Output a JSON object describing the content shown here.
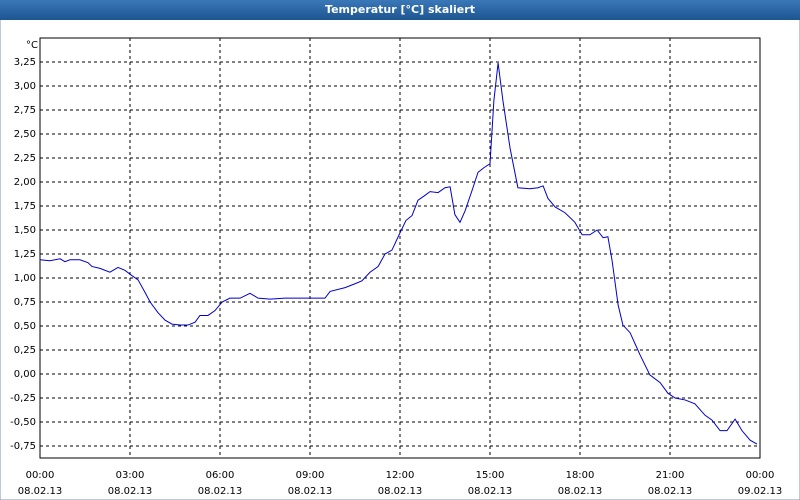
{
  "chart_data": {
    "type": "line",
    "title": "Temperatur [°C] skaliert",
    "y_unit": "°C",
    "xlim": [
      0,
      24
    ],
    "ylim": [
      -0.875,
      3.5
    ],
    "grid": true,
    "xticks": [
      {
        "value": 0,
        "label": "00:00",
        "date": "08.02.13"
      },
      {
        "value": 3,
        "label": "03:00",
        "date": "08.02.13"
      },
      {
        "value": 6,
        "label": "06:00",
        "date": "08.02.13"
      },
      {
        "value": 9,
        "label": "09:00",
        "date": "08.02.13"
      },
      {
        "value": 12,
        "label": "12:00",
        "date": "08.02.13"
      },
      {
        "value": 15,
        "label": "15:00",
        "date": "08.02.13"
      },
      {
        "value": 18,
        "label": "18:00",
        "date": "08.02.13"
      },
      {
        "value": 21,
        "label": "21:00",
        "date": "08.02.13"
      },
      {
        "value": 24,
        "label": "00:00",
        "date": "09.02.13"
      }
    ],
    "yticks": [
      {
        "value": 3.25,
        "label": "3,25"
      },
      {
        "value": 3,
        "label": "3,00"
      },
      {
        "value": 2.75,
        "label": "2,75"
      },
      {
        "value": 2.5,
        "label": "2,50"
      },
      {
        "value": 2.25,
        "label": "2,25"
      },
      {
        "value": 2,
        "label": "2,00"
      },
      {
        "value": 1.75,
        "label": "1,75"
      },
      {
        "value": 1.5,
        "label": "1,50"
      },
      {
        "value": 1.25,
        "label": "1,25"
      },
      {
        "value": 1,
        "label": "1,00"
      },
      {
        "value": 0.75,
        "label": "0,75"
      },
      {
        "value": 0.5,
        "label": "0,50"
      },
      {
        "value": 0.25,
        "label": "0,25"
      },
      {
        "value": 0,
        "label": "0,00"
      },
      {
        "value": -0.25,
        "label": "-0,25"
      },
      {
        "value": -0.5,
        "label": "-0,50"
      },
      {
        "value": -0.75,
        "label": "-0,75"
      }
    ],
    "x": [
      0,
      0.33,
      0.67,
      0.83,
      1.0,
      1.33,
      1.6,
      1.73,
      2.0,
      2.33,
      2.6,
      2.83,
      3.0,
      3.27,
      3.5,
      3.67,
      3.93,
      4.17,
      4.4,
      4.67,
      4.93,
      5.17,
      5.33,
      5.6,
      5.83,
      6.07,
      6.33,
      6.67,
      7.0,
      7.27,
      7.67,
      8.17,
      8.67,
      9.17,
      9.5,
      9.67,
      10.17,
      10.5,
      10.73,
      11.0,
      11.27,
      11.5,
      11.73,
      12.0,
      12.2,
      12.4,
      12.6,
      12.83,
      13.0,
      13.27,
      13.5,
      13.67,
      13.83,
      14.0,
      14.17,
      14.4,
      14.6,
      14.8,
      15.0,
      15.13,
      15.27,
      15.43,
      15.67,
      15.93,
      16.33,
      16.6,
      16.77,
      16.93,
      17.17,
      17.5,
      17.83,
      18.07,
      18.33,
      18.57,
      18.77,
      18.93,
      19.07,
      19.27,
      19.43,
      19.67,
      20.0,
      20.33,
      20.67,
      20.93,
      21.17,
      21.5,
      21.83,
      22.17,
      22.4,
      22.67,
      22.9,
      23.17,
      23.4,
      23.67,
      23.9
    ],
    "series": [
      {
        "color": "#0000cc",
        "values": [
          1.19,
          1.18,
          1.2,
          1.17,
          1.19,
          1.19,
          1.16,
          1.12,
          1.1,
          1.06,
          1.11,
          1.08,
          1.04,
          0.98,
          0.85,
          0.75,
          0.64,
          0.56,
          0.52,
          0.51,
          0.51,
          0.54,
          0.61,
          0.61,
          0.66,
          0.75,
          0.79,
          0.79,
          0.84,
          0.79,
          0.78,
          0.79,
          0.79,
          0.79,
          0.79,
          0.86,
          0.9,
          0.94,
          0.97,
          1.06,
          1.12,
          1.25,
          1.29,
          1.47,
          1.6,
          1.65,
          1.81,
          1.86,
          1.9,
          1.89,
          1.94,
          1.95,
          1.66,
          1.58,
          1.7,
          1.91,
          2.1,
          2.15,
          2.19,
          2.85,
          3.24,
          2.85,
          2.35,
          1.94,
          1.93,
          1.94,
          1.96,
          1.83,
          1.74,
          1.68,
          1.58,
          1.45,
          1.45,
          1.5,
          1.42,
          1.43,
          1.18,
          0.72,
          0.51,
          0.43,
          0.2,
          -0.01,
          -0.09,
          -0.2,
          -0.25,
          -0.27,
          -0.31,
          -0.43,
          -0.48,
          -0.59,
          -0.59,
          -0.47,
          -0.59,
          -0.69,
          -0.73
        ]
      }
    ]
  }
}
